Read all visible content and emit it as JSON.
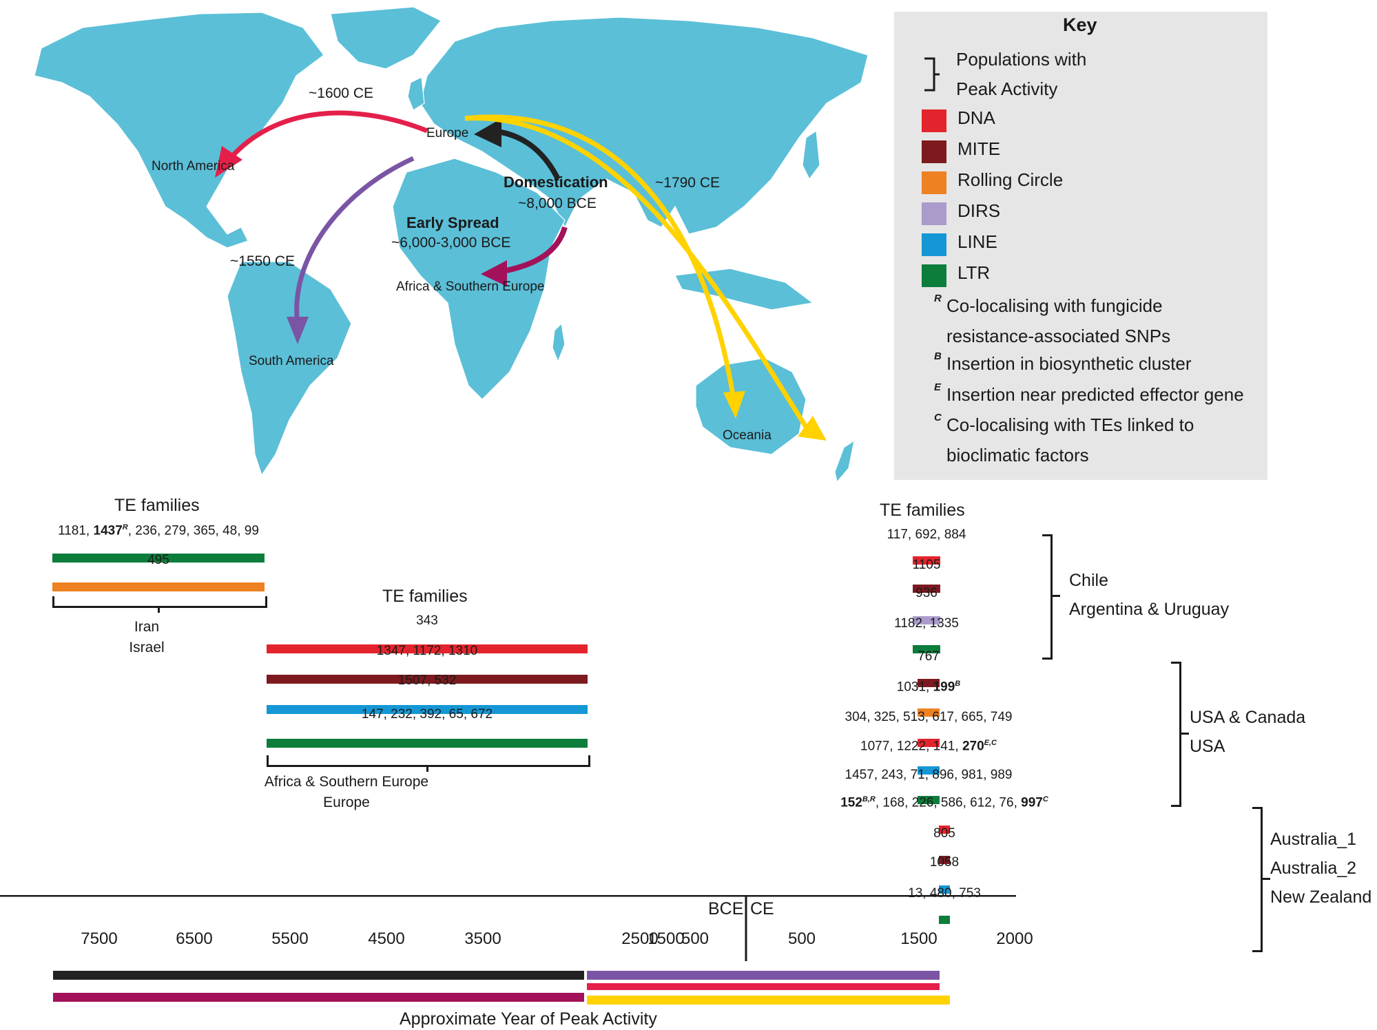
{
  "map": {
    "labels": {
      "europe": "Europe",
      "north_america": "North America",
      "south_america": "South America",
      "africa_se": "Africa & Southern Europe",
      "oceania": "Oceania"
    },
    "events": {
      "domestication_title": "Domestication",
      "domestication_date": "~8,000 BCE",
      "early_spread_title": "Early Spread",
      "early_spread_date": "~6,000-3,000 BCE",
      "north_america_date": "~1600 CE",
      "south_america_date": "~1550 CE",
      "oceania_date": "~1790 CE"
    }
  },
  "key": {
    "title": "Key",
    "populations_line1": "Populations with",
    "populations_line2": "Peak Activity",
    "types": [
      {
        "label": "DNA",
        "color": "#e4242c"
      },
      {
        "label": "MITE",
        "color": "#7c1a1f"
      },
      {
        "label": "Rolling Circle",
        "color": "#ee8121"
      },
      {
        "label": "DIRS",
        "color": "#ab9bcb"
      },
      {
        "label": "LINE",
        "color": "#1497d4"
      },
      {
        "label": "LTR",
        "color": "#0d7d3c"
      }
    ],
    "markers": [
      {
        "symbol": "R",
        "line1": "Co-localising with fungicide",
        "line2": "resistance-associated SNPs"
      },
      {
        "symbol": "B",
        "line1": "Insertion in biosynthetic cluster"
      },
      {
        "symbol": "E",
        "line1": "Insertion near predicted effector gene"
      },
      {
        "symbol": "C",
        "line1": "Co-localising with TEs linked to",
        "line2": "bioclimatic factors"
      }
    ]
  },
  "panels": {
    "te_families_label": "TE families",
    "iran": {
      "rows": [
        {
          "pre": "1181, ",
          "bold": "1437",
          "sup": "R",
          "post": ", 236, 279, 365, 48, 99",
          "color": "#0d7d3c"
        },
        {
          "pre": "495",
          "color": "#ee8121"
        }
      ],
      "populations": [
        "Iran",
        "Israel"
      ]
    },
    "africa": {
      "rows": [
        {
          "pre": "343",
          "color": "#e4242c"
        },
        {
          "pre": "1347, 1172, 1310",
          "color": "#7c1a1f"
        },
        {
          "pre": "1507, 532",
          "color": "#1497d4"
        },
        {
          "pre": "147, 232, 392, 65, 672",
          "color": "#0d7d3c"
        }
      ],
      "populations": [
        "Africa & Southern Europe",
        "Europe"
      ]
    },
    "chile": {
      "rows": [
        {
          "pre": "117, 692, 884",
          "color": "#e4242c"
        },
        {
          "pre": "1105",
          "color": "#7c1a1f"
        },
        {
          "pre": "936",
          "color": "#ab9bcb"
        },
        {
          "pre": "1182, 1335",
          "color": "#0d7d3c"
        }
      ],
      "populations": [
        "Chile",
        "Argentina & Uruguay"
      ]
    },
    "usa": {
      "rows": [
        {
          "pre": "767",
          "color": "#7c1a1f"
        },
        {
          "pre": "1031, ",
          "bold": "199",
          "sup": "B",
          "color": "#ee8121"
        },
        {
          "pre": "304, 325, 513, 617, 665, 749",
          "color": "#e4242c"
        },
        {
          "pre": "1077, 1222, 141, ",
          "bold": "270",
          "sup": "E,C",
          "color": "#1497d4"
        },
        {
          "pre": "1457, 243, 71, 896, 981, 989",
          "color": "#0d7d3c"
        }
      ],
      "populations": [
        "USA & Canada",
        "USA"
      ]
    },
    "aus": {
      "rows": [
        {
          "bold": "152",
          "sup": "B,R",
          "post": ", 168, 226, 586, 612, 76, ",
          "bold2": "997",
          "sup2": "C",
          "color": "#e4242c"
        },
        {
          "pre": "805",
          "color": "#7c1a1f"
        },
        {
          "pre": "1058",
          "color": "#1497d4"
        },
        {
          "pre": "13, 480, 753",
          "color": "#0d7d3c"
        }
      ],
      "populations": [
        "Australia_1",
        "Australia_2",
        "New Zealand"
      ]
    }
  },
  "timeline": {
    "bce_ticks": [
      "7500",
      "6500",
      "5500",
      "4500",
      "3500",
      "2500",
      "1500",
      "500"
    ],
    "ce_ticks": [
      "500",
      "1500",
      "2000"
    ],
    "bce_label": "BCE",
    "ce_label": "CE",
    "xlabel": "Approximate Year of Peak Activity",
    "bars": [
      {
        "name": "domestication",
        "color": "#222222"
      },
      {
        "name": "early-spread",
        "color": "#a3115a"
      },
      {
        "name": "south-america",
        "color": "#7b55a5"
      },
      {
        "name": "north-america",
        "color": "#e4204a"
      },
      {
        "name": "oceania",
        "color": "#ffd200"
      }
    ]
  }
}
